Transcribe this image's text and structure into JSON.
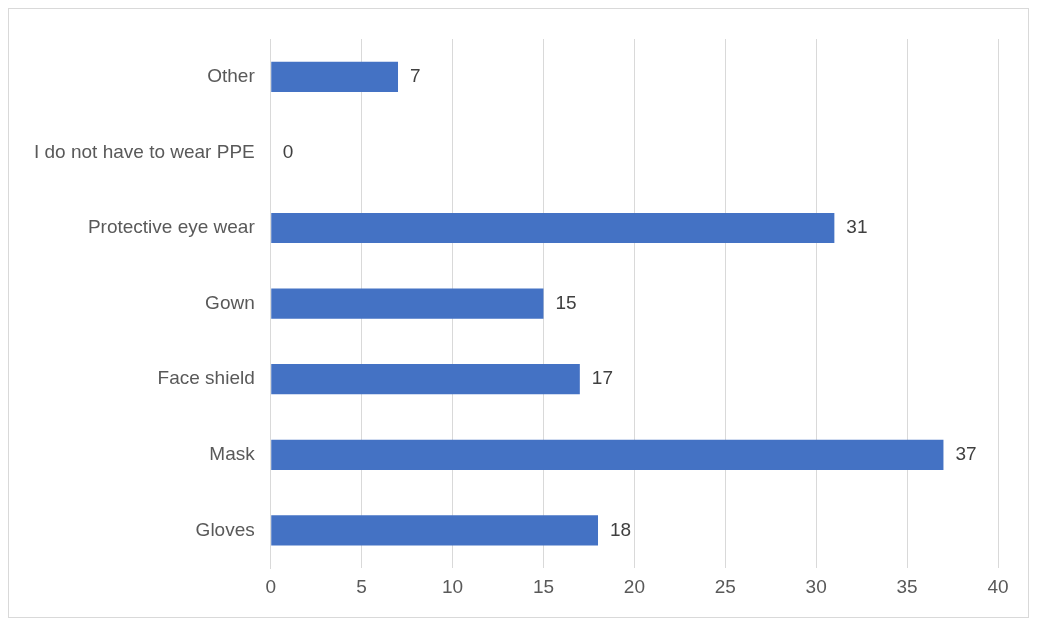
{
  "chart_data": {
    "type": "bar",
    "orientation": "horizontal",
    "categories": [
      "Other",
      "I do not have to wear PPE",
      "Protective eye wear",
      "Gown",
      "Face shield",
      "Mask",
      "Gloves"
    ],
    "values": [
      7,
      0,
      31,
      15,
      17,
      37,
      18
    ],
    "color": "#4472c4",
    "xlim": [
      0,
      40
    ],
    "xticks": [
      0,
      5,
      10,
      15,
      20,
      25,
      30,
      35,
      40
    ],
    "grid": "x",
    "data_labels": true,
    "legend": false
  }
}
